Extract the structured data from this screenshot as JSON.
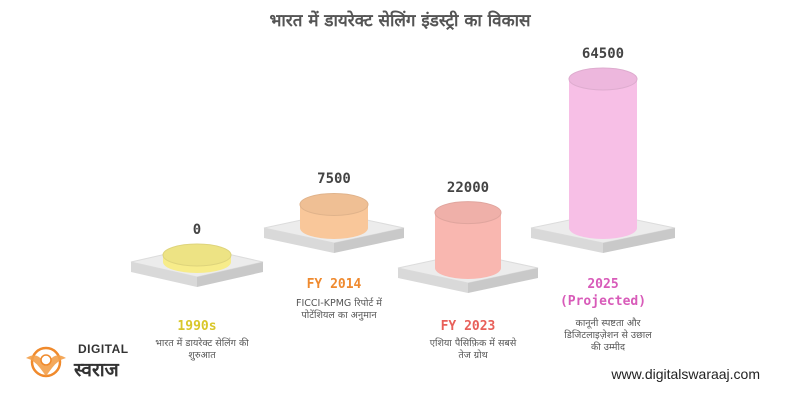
{
  "title": "भारत में डायरेक्ट सेलिंग इंडस्ट्री का विकास",
  "chart_data": {
    "type": "bar",
    "title": "भारत में डायरेक्ट सेलिंग इंडस्ट्री का विकास",
    "categories": [
      "1990s",
      "FY 2014",
      "FY 2023",
      "2025 (Projected)"
    ],
    "values": [
      0,
      7500,
      22000,
      64500
    ],
    "value_labels": [
      "0",
      "7500",
      "22000",
      "64500"
    ],
    "descriptions": [
      [
        "भारत में डायरेक्ट सेलिंग की",
        "शुरुआत"
      ],
      [
        "FICCI-KPMG रिपोर्ट में",
        "पोटेंशियल का अनुमान"
      ],
      [
        "एशिया पैसिफ़िक में सबसे",
        "तेज ग्रोथ"
      ],
      [
        "कानूनी स्पष्टता और",
        "डिजिटलाइज़ेशन से उछाल",
        "की उम्मीद"
      ]
    ],
    "colors": [
      "#f7ec8a",
      "#f9c79a",
      "#f9b7b0",
      "#f7bfe6"
    ],
    "label_colors": [
      "#d9c72a",
      "#ef8a2f",
      "#e8605a",
      "#d85bb9"
    ]
  },
  "category_lines": {
    "c1990": [
      "1990s"
    ],
    "c2014": [
      "FY 2014"
    ],
    "c2023": [
      "FY 2023"
    ],
    "c2025": [
      "2025",
      "(Projected)"
    ]
  },
  "logo": {
    "text_en": "DIGITAL",
    "text_hi": "स्वराज"
  },
  "website": "www.digitalswaraaj.com"
}
